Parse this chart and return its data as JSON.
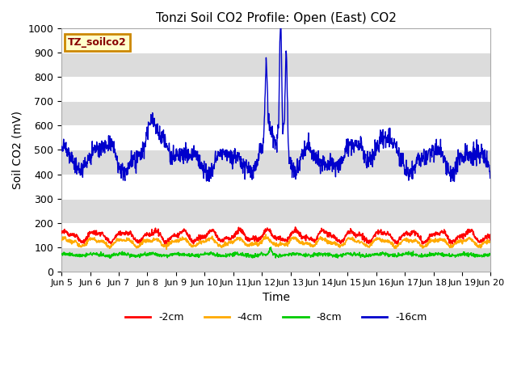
{
  "title": "Tonzi Soil CO2 Profile: Open (East) CO2",
  "xlabel": "Time",
  "ylabel": "Soil CO2 (mV)",
  "ylim": [
    0,
    1000
  ],
  "bg_color": "#dcdcdc",
  "plot_bg_color": "#dcdcdc",
  "white_band_color": "#f0f0f0",
  "grid_color": "#ffffff",
  "label_box_text": "TZ_soilco2",
  "label_box_facecolor": "#ffffcc",
  "label_box_edgecolor": "#cc8800",
  "label_box_textcolor": "#880000",
  "series_colors": {
    "m2cm": "#ff0000",
    "m4cm": "#ffaa00",
    "m8cm": "#00cc00",
    "m16cm": "#0000cc"
  },
  "legend_labels": [
    "-2cm",
    "-4cm",
    "-8cm",
    "-16cm"
  ],
  "x_tick_labels": [
    "Jun 5",
    "Jun 6",
    "Jun 7",
    "Jun 8",
    "Jun 9",
    "Jun 10",
    "Jun 11",
    "Jun 12",
    "Jun 13",
    "Jun 14",
    "Jun 15",
    "Jun 16",
    "Jun 17",
    "Jun 18",
    "Jun 19",
    "Jun 20"
  ],
  "yticks": [
    0,
    100,
    200,
    300,
    400,
    500,
    600,
    700,
    800,
    900,
    1000
  ]
}
